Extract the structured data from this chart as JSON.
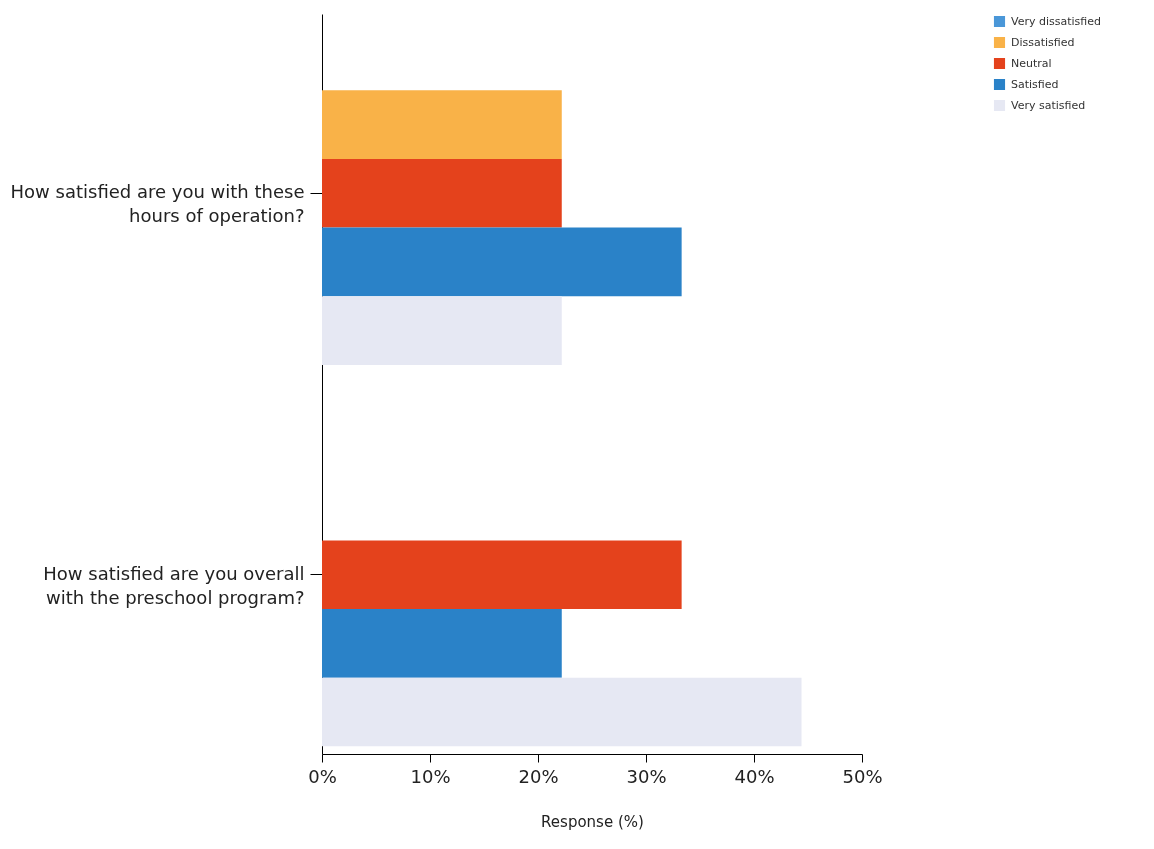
{
  "chart_data": {
    "type": "bar",
    "orientation": "horizontal",
    "xlabel": "Response (%)",
    "legend": "top right",
    "categories": [
      "How satisfied are you with these hours of operation?",
      "How satisfied are you overall with the preschool program?"
    ],
    "series": [
      {
        "name": "Very dissatisfied",
        "color": "#4a97d8",
        "values": [
          0,
          0
        ]
      },
      {
        "name": "Dissatisfied",
        "color": "#f9b248",
        "values": [
          22.2,
          0
        ]
      },
      {
        "name": "Neutral",
        "color": "#e4421c",
        "values": [
          22.2,
          33.3
        ]
      },
      {
        "name": "Satisfied",
        "color": "#2a82c8",
        "values": [
          33.3,
          22.2
        ]
      },
      {
        "name": "Very satisfied",
        "color": "#e6e8f3",
        "values": [
          22.2,
          44.4
        ]
      }
    ],
    "xlim": [
      0,
      50
    ],
    "xticks": [
      {
        "value": 0,
        "label": "0%"
      },
      {
        "value": 10,
        "label": "10%"
      },
      {
        "value": 20,
        "label": "20%"
      },
      {
        "value": 30,
        "label": "30%"
      },
      {
        "value": 40,
        "label": "40%"
      },
      {
        "value": 50,
        "label": "50%"
      }
    ]
  }
}
